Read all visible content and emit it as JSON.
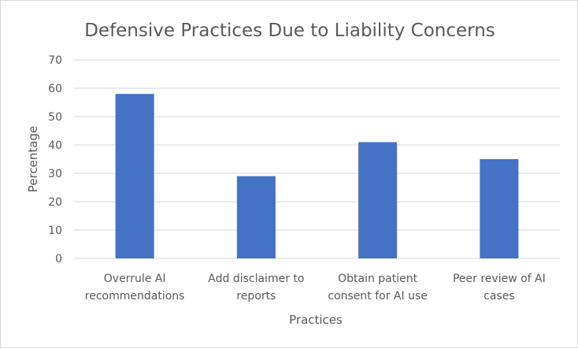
{
  "chart_data": {
    "type": "bar",
    "title": "Defensive Practices Due to Liability Concerns",
    "xlabel": "Practices",
    "ylabel": "Percentage",
    "categories": [
      [
        "Overrule AI",
        "recommendations"
      ],
      [
        "Add disclaimer to",
        "reports"
      ],
      [
        "Obtain patient",
        "consent for AI use"
      ],
      [
        "Peer review of AI",
        "cases"
      ]
    ],
    "values": [
      58,
      29,
      41,
      35
    ],
    "ylim": [
      0,
      70
    ],
    "yticks": [
      "0",
      "10",
      "20",
      "30",
      "40",
      "50",
      "60",
      "70"
    ],
    "grid": true,
    "legend": "none",
    "bar_color": "#4472C4",
    "grid_color": "#d9d9d9"
  }
}
